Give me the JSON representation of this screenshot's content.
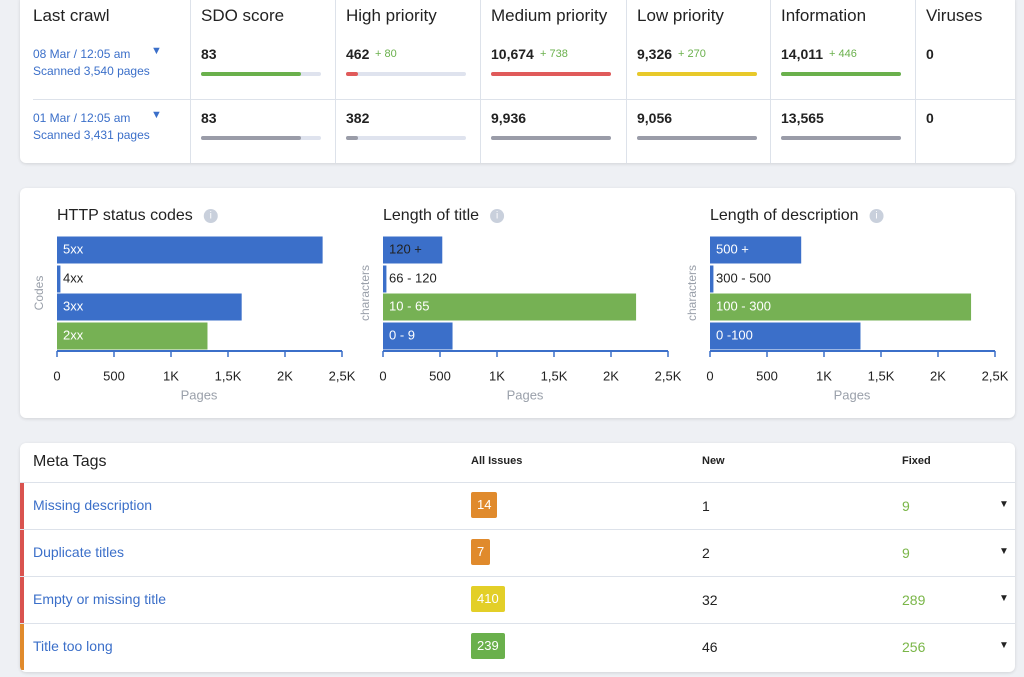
{
  "crawl_table": {
    "headers": [
      "Last crawl",
      "SDO score",
      "High priority",
      "Medium priority",
      "Low priority",
      "Information",
      "Viruses"
    ],
    "rows": [
      {
        "date": "08 Mar / 12:05 am",
        "scanned": "Scanned 3,540 pages",
        "cells": [
          {
            "value": "83",
            "color": "#6ab04c"
          },
          {
            "value": "462",
            "delta": "+ 80",
            "color": "#e05a5a"
          },
          {
            "value": "10,674",
            "delta": "+ 738",
            "color": "#e05a5a"
          },
          {
            "value": "9,326",
            "delta": "+ 270",
            "color": "#e8c92a"
          },
          {
            "value": "14,011",
            "delta": "+ 446",
            "color": "#6ab04c"
          },
          {
            "value": "0"
          }
        ]
      },
      {
        "date": "01 Mar / 12:05 am",
        "scanned": "Scanned 3,431 pages",
        "cells": [
          {
            "value": "83",
            "color": "#9a9ca8"
          },
          {
            "value": "382",
            "color": "#9a9ca8"
          },
          {
            "value": "9,936",
            "color": "#9a9ca8"
          },
          {
            "value": "9,056",
            "color": "#9a9ca8"
          },
          {
            "value": "13,565",
            "color": "#9a9ca8"
          },
          {
            "value": "0"
          }
        ]
      }
    ]
  },
  "chart_data": [
    {
      "type": "bar",
      "orientation": "horizontal",
      "title": "HTTP status codes",
      "categories": [
        "5xx",
        "4xx",
        "3xx",
        "2xx"
      ],
      "values": [
        2330,
        30,
        1620,
        1320
      ],
      "colors": [
        "#3b6fc9",
        "#3b6fc9",
        "#3b6fc9",
        "#76b154"
      ],
      "xlim": [
        0,
        2500
      ],
      "xticks": [
        0,
        500,
        {
          "value": 1000,
          "label": "1K"
        },
        {
          "value": 1500,
          "label": "1,5K"
        },
        {
          "value": 2000,
          "label": "2K"
        },
        {
          "value": 2500,
          "label": "2,5K"
        }
      ],
      "x_label": "Pages",
      "y_label": "Codes"
    },
    {
      "type": "bar",
      "orientation": "horizontal",
      "title": "Length  of title",
      "categories": [
        "120 +",
        "66 - 120",
        "10 - 65",
        "0 - 9"
      ],
      "values": [
        520,
        30,
        2220,
        610
      ],
      "colors": [
        "#3b6fc9",
        "#3b6fc9",
        "#76b154",
        "#3b6fc9"
      ],
      "xlim": [
        0,
        2500
      ],
      "xticks": [
        0,
        500,
        {
          "value": 1000,
          "label": "1K"
        },
        {
          "value": 1500,
          "label": "1,5K"
        },
        {
          "value": 2000,
          "label": "2K"
        },
        {
          "value": 2500,
          "label": "2,5K"
        }
      ],
      "x_label": "Pages",
      "y_label": "characters"
    },
    {
      "type": "bar",
      "orientation": "horizontal",
      "title": "Length  of description",
      "categories": [
        "500 +",
        "300 - 500",
        "100 - 300",
        "0 -100"
      ],
      "values": [
        800,
        30,
        2290,
        1320
      ],
      "colors": [
        "#3b6fc9",
        "#3b6fc9",
        "#76b154",
        "#3b6fc9"
      ],
      "xlim": [
        0,
        2500
      ],
      "xticks": [
        0,
        500,
        {
          "value": 1000,
          "label": "1K"
        },
        {
          "value": 1500,
          "label": "1,5K"
        },
        {
          "value": 2000,
          "label": "2K"
        },
        {
          "value": 2500,
          "label": "2,5K"
        }
      ],
      "x_label": "Pages",
      "y_label": "characters"
    }
  ],
  "meta_table": {
    "headers": [
      "Meta Tags",
      "All Issues",
      "New",
      "Fixed"
    ],
    "rows": [
      {
        "name": "Missing description",
        "all_issues": 14,
        "new": 1,
        "fixed": 9,
        "badge_color": "#e08a2c",
        "stripe_color": "#d9534f"
      },
      {
        "name": "Duplicate titles",
        "all_issues": 7,
        "new": 2,
        "fixed": 9,
        "badge_color": "#e08a2c",
        "stripe_color": "#d9534f"
      },
      {
        "name": "Empty or missing title",
        "all_issues": 410,
        "new": 32,
        "fixed": 289,
        "badge_color": "#e3cf28",
        "stripe_color": "#d9534f"
      },
      {
        "name": "Title too long",
        "all_issues": 239,
        "new": 46,
        "fixed": 256,
        "badge_color": "#6ab04c",
        "stripe_color": "#e08a2c"
      }
    ]
  }
}
